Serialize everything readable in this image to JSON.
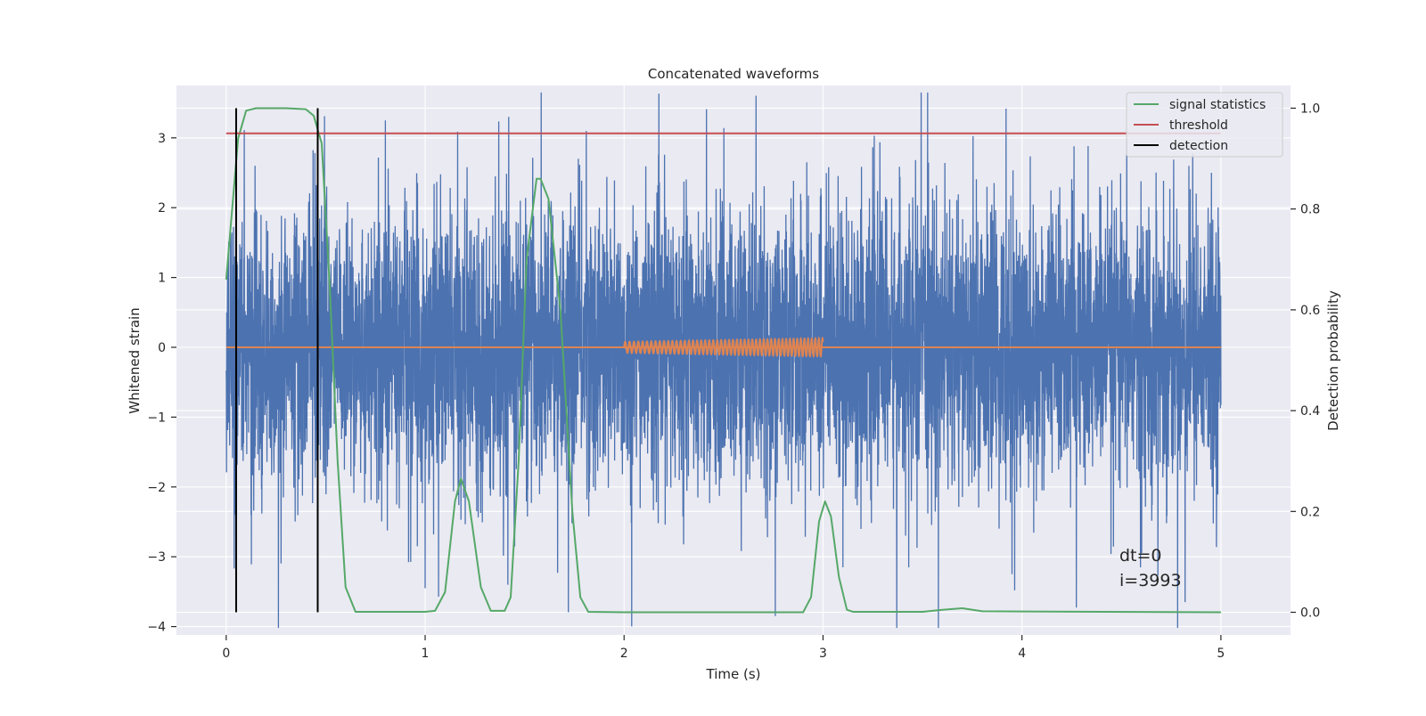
{
  "chart_data": {
    "type": "line",
    "title": "Concatenated waveforms",
    "xlabel": "Time (s)",
    "ylabel_left": "Whitened strain",
    "ylabel_right": "Detection probability",
    "xlim": [
      -0.25,
      5.35
    ],
    "ylim_left": [
      -4.12,
      3.75
    ],
    "ylim_right": [
      -0.045,
      1.045
    ],
    "xticks": [
      0,
      1,
      2,
      3,
      4,
      5
    ],
    "yticks_left": [
      -4,
      -3,
      -2,
      -1,
      0,
      1,
      2,
      3
    ],
    "yticks_right": [
      0.0,
      0.2,
      0.4,
      0.6,
      0.8,
      1.0
    ],
    "grid": true,
    "legend_position": "top-right",
    "colors": {
      "background": "#eaeaf2",
      "grid": "#ffffff",
      "strain": "#4c72b0",
      "injected_signal": "#dd8452",
      "signal_statistics": "#55a868",
      "threshold": "#c44e52",
      "detection": "#000000"
    },
    "legend": [
      {
        "label": "signal statistics",
        "color": "#55a868"
      },
      {
        "label": "threshold",
        "color": "#c44e52"
      },
      {
        "label": "detection",
        "color": "#000000"
      }
    ],
    "series": [
      {
        "axis": "left",
        "color": "#4c72b0",
        "description_type": "noise",
        "x_range": [
          0,
          5
        ],
        "typical_amplitude": 2.2,
        "notable_peaks": [
          {
            "x": 0.8,
            "y": 3.25
          },
          {
            "x": 1.42,
            "y": 3.3
          },
          {
            "x": 1.81,
            "y": 3.1
          },
          {
            "x": 3.92,
            "y": 3.42
          },
          {
            "x": 4.82,
            "y": -3.65
          },
          {
            "x": 1.0,
            "y": -3.45
          },
          {
            "x": 1.45,
            "y": -2.85
          },
          {
            "x": 3.1,
            "y": -3.15
          },
          {
            "x": 3.95,
            "y": -3.25
          }
        ]
      },
      {
        "axis": "left",
        "color": "#dd8452",
        "baseline_x_range": [
          0,
          5
        ],
        "chirp": {
          "x_start": 2.0,
          "x_end": 3.0,
          "amplitude_start": 0.08,
          "amplitude_end": 0.13,
          "cycles": 45
        }
      },
      {
        "name": "signal statistics",
        "axis": "right",
        "color": "#55a868",
        "x": [
          0.0,
          0.03,
          0.06,
          0.1,
          0.15,
          0.2,
          0.3,
          0.4,
          0.44,
          0.48,
          0.52,
          0.56,
          0.6,
          0.65,
          1.0,
          1.05,
          1.1,
          1.15,
          1.18,
          1.22,
          1.28,
          1.33,
          1.4,
          1.43,
          1.47,
          1.51,
          1.56,
          1.58,
          1.62,
          1.68,
          1.74,
          1.78,
          1.82,
          2.0,
          2.9,
          2.94,
          2.98,
          3.01,
          3.04,
          3.08,
          3.12,
          3.15,
          3.5,
          3.6,
          3.7,
          3.8,
          5.0
        ],
        "y": [
          0.66,
          0.8,
          0.94,
          0.995,
          1.0,
          1.0,
          1.0,
          0.998,
          0.985,
          0.93,
          0.65,
          0.3,
          0.05,
          0.001,
          0.001,
          0.003,
          0.04,
          0.22,
          0.265,
          0.22,
          0.05,
          0.003,
          0.003,
          0.03,
          0.3,
          0.7,
          0.86,
          0.86,
          0.82,
          0.6,
          0.2,
          0.03,
          0.001,
          0.0,
          0.0,
          0.03,
          0.18,
          0.22,
          0.19,
          0.07,
          0.005,
          0.001,
          0.001,
          0.005,
          0.008,
          0.002,
          0.0
        ]
      },
      {
        "name": "threshold",
        "axis": "right",
        "color": "#c44e52",
        "x": [
          0,
          5
        ],
        "y": [
          0.95,
          0.95
        ]
      },
      {
        "name": "detection",
        "axis": "right",
        "color": "#000000",
        "vertical_lines": [
          0.05,
          0.46
        ],
        "y_range": [
          0.0,
          1.0
        ]
      }
    ],
    "annotations": [
      "dt=0",
      "i=3993"
    ]
  }
}
